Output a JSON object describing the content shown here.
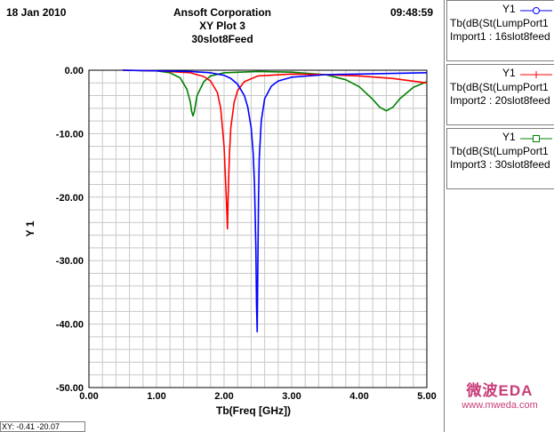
{
  "header": {
    "date": "18 Jan 2010",
    "company": "Ansoft Corporation",
    "plot_title": "XY Plot 3",
    "project": "30slot8Feed",
    "time": "09:48:59"
  },
  "status": {
    "xy_readout": "XY: -0.41 -20.07"
  },
  "legend": [
    {
      "ylabel": "Y1",
      "expr": "Tb(dB(St(LumpPort1",
      "source": "Import1 : 16slot8feed",
      "color": "#0000ff",
      "marker": "circle-marker-icon"
    },
    {
      "ylabel": "Y1",
      "expr": "Tb(dB(St(LumpPort1",
      "source": "Import2 : 20slot8feed",
      "color": "#ff0000",
      "marker": "plus-marker-icon"
    },
    {
      "ylabel": "Y1",
      "expr": "Tb(dB(St(LumpPort1",
      "source": "Import3 : 30slot8feed",
      "color": "#008000",
      "marker": "square-marker-icon"
    }
  ],
  "watermark": {
    "title": "微波EDA",
    "url": "www.mweda.com"
  },
  "chart_data": {
    "type": "line",
    "xlabel": "Tb(Freq [GHz])",
    "ylabel": "Y 1",
    "xlim": [
      0,
      5
    ],
    "ylim": [
      -50,
      0
    ],
    "x_ticks": [
      "0.00",
      "1.00",
      "2.00",
      "3.00",
      "4.00",
      "5.00"
    ],
    "y_ticks": [
      "0.00",
      "-10.00",
      "-20.00",
      "-30.00",
      "-40.00",
      "-50.00"
    ],
    "grid": true,
    "series": [
      {
        "name": "Import1 : 16slot8feed",
        "color": "#0000ff",
        "x": [
          0.5,
          1.0,
          1.5,
          1.8,
          2.0,
          2.1,
          2.2,
          2.3,
          2.35,
          2.4,
          2.43,
          2.45,
          2.47,
          2.48,
          2.49,
          2.5,
          2.51,
          2.52,
          2.55,
          2.6,
          2.7,
          2.8,
          3.0,
          3.5,
          4.0,
          4.5,
          5.0
        ],
        "y": [
          0.0,
          -0.1,
          -0.2,
          -0.4,
          -0.8,
          -1.3,
          -2.2,
          -4.0,
          -5.8,
          -9.0,
          -13.0,
          -18.0,
          -28.0,
          -37.0,
          -41.2,
          -30.0,
          -20.0,
          -14.0,
          -8.0,
          -4.5,
          -2.5,
          -1.7,
          -1.1,
          -0.7,
          -0.6,
          -0.5,
          -0.4
        ]
      },
      {
        "name": "Import2 : 20slot8feed",
        "color": "#ff0000",
        "x": [
          0.5,
          1.0,
          1.5,
          1.7,
          1.8,
          1.9,
          1.95,
          2.0,
          2.02,
          2.04,
          2.05,
          2.06,
          2.08,
          2.1,
          2.15,
          2.2,
          2.3,
          2.5,
          3.0,
          3.5,
          4.0,
          4.5,
          5.0
        ],
        "y": [
          0.0,
          -0.1,
          -0.4,
          -1.0,
          -1.7,
          -3.5,
          -6.0,
          -12.0,
          -17.0,
          -22.0,
          -25.0,
          -20.0,
          -13.0,
          -9.0,
          -5.0,
          -3.2,
          -1.8,
          -0.9,
          -0.6,
          -0.7,
          -0.9,
          -1.3,
          -2.0
        ]
      },
      {
        "name": "Import3 : 30slot8feed",
        "color": "#008000",
        "x": [
          0.5,
          1.0,
          1.2,
          1.35,
          1.45,
          1.5,
          1.52,
          1.54,
          1.56,
          1.6,
          1.7,
          1.8,
          2.0,
          2.5,
          3.0,
          3.5,
          3.8,
          4.0,
          4.2,
          4.3,
          4.4,
          4.5,
          4.6,
          4.8,
          5.0
        ],
        "y": [
          0.0,
          -0.1,
          -0.4,
          -1.2,
          -3.0,
          -5.0,
          -6.5,
          -7.2,
          -6.5,
          -4.0,
          -1.8,
          -0.9,
          -0.4,
          -0.2,
          -0.3,
          -0.7,
          -1.5,
          -2.6,
          -4.6,
          -5.8,
          -6.4,
          -5.8,
          -4.5,
          -2.7,
          -1.8
        ]
      }
    ]
  }
}
